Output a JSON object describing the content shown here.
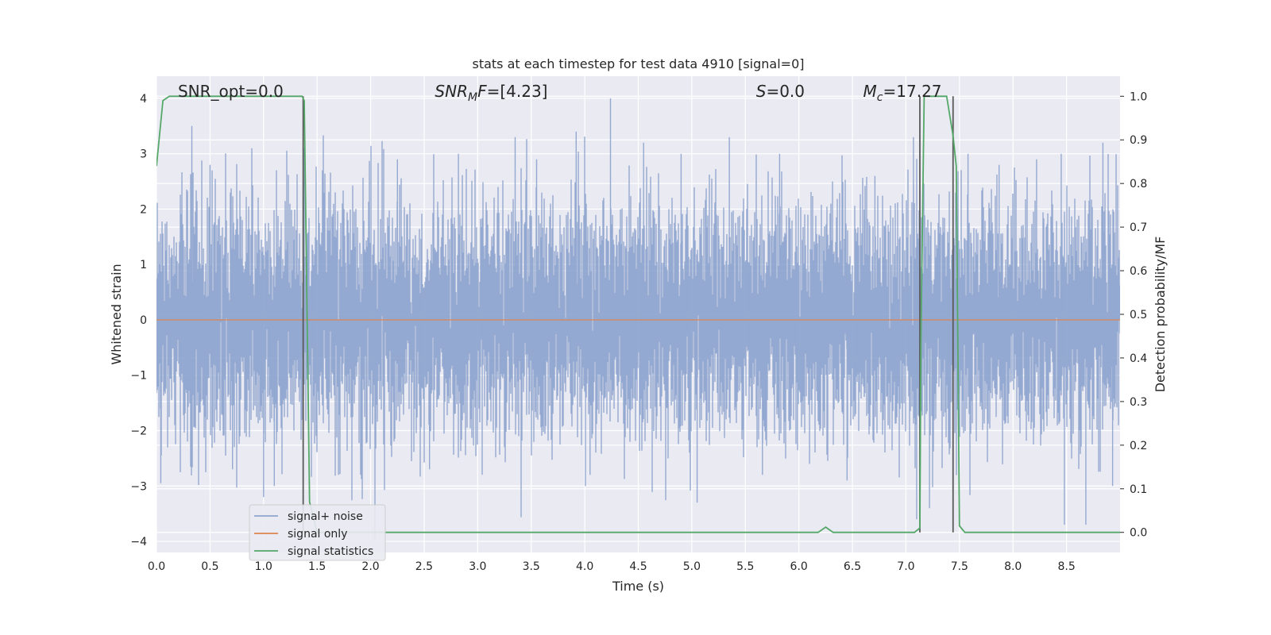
{
  "chart_data": {
    "type": "line",
    "title": "stats at each timestep for test data 4910 [signal=0]",
    "xlabel": "Time (s)",
    "ylabel": "Whitened strain",
    "y2label": "Detection probability/MF",
    "xlim": [
      0,
      9
    ],
    "ylim": [
      -4.2,
      4.4
    ],
    "y2lim": [
      -0.046,
      1.046
    ],
    "x_ticks": [
      0.0,
      0.5,
      1.0,
      1.5,
      2.0,
      2.5,
      3.0,
      3.5,
      4.0,
      4.5,
      5.0,
      5.5,
      6.0,
      6.5,
      7.0,
      7.5,
      8.0,
      8.5
    ],
    "x_tick_labels": [
      "0.0",
      "0.5",
      "1.0",
      "1.5",
      "2.0",
      "2.5",
      "3.0",
      "3.5",
      "4.0",
      "4.5",
      "5.0",
      "5.5",
      "6.0",
      "6.5",
      "7.0",
      "7.5",
      "8.0",
      "8.5"
    ],
    "y_ticks": [
      -4,
      -3,
      -2,
      -1,
      0,
      1,
      2,
      3,
      4
    ],
    "y_tick_labels": [
      "−4",
      "−3",
      "−2",
      "−1",
      "0",
      "1",
      "2",
      "3",
      "4"
    ],
    "y2_ticks": [
      0.0,
      0.1,
      0.2,
      0.3,
      0.4,
      0.5,
      0.6,
      0.7,
      0.8,
      0.9,
      1.0
    ],
    "y2_tick_labels": [
      "0.0",
      "0.1",
      "0.2",
      "0.3",
      "0.4",
      "0.5",
      "0.6",
      "0.7",
      "0.8",
      "0.9",
      "1.0"
    ],
    "grid": true,
    "legend_position": "lower-left",
    "annotations": [
      {
        "text": "SNR_opt=0.0",
        "x": 0.2
      },
      {
        "text": "SNR",
        "sub": "M",
        "after": "F=[4.23]",
        "x": 2.6
      },
      {
        "text": "S",
        "sub": "",
        "after": "=0.0",
        "x": 5.6
      },
      {
        "text": "M",
        "sub": "c",
        "after": "=17.27",
        "x": 6.6
      }
    ],
    "vertical_lines": [
      1.37,
      7.13,
      7.44
    ],
    "series": [
      {
        "name": "signal+ noise",
        "color": "#8fa5cf",
        "axis": "left",
        "style": "noise",
        "sample_rate": 2048,
        "sigma": 1.0,
        "spikes": [
          [
            0.04,
            -2.95
          ],
          [
            0.33,
            3.5
          ],
          [
            0.5,
            2.8
          ],
          [
            0.71,
            -2.7
          ],
          [
            0.89,
            3.1
          ],
          [
            1.0,
            -3.2
          ],
          [
            1.1,
            -3.0
          ],
          [
            1.38,
            3.1
          ],
          [
            1.55,
            2.7
          ],
          [
            1.7,
            -2.8
          ],
          [
            2.25,
            2.9
          ],
          [
            2.55,
            -2.7
          ],
          [
            2.82,
            3.0
          ],
          [
            3.35,
            3.3
          ],
          [
            3.55,
            2.9
          ],
          [
            3.92,
            3.4
          ],
          [
            4.05,
            -2.8
          ],
          [
            4.24,
            4.0
          ],
          [
            4.55,
            3.2
          ],
          [
            4.9,
            3.0
          ],
          [
            5.05,
            -3.3
          ],
          [
            5.35,
            3.3
          ],
          [
            5.66,
            -2.8
          ],
          [
            5.82,
            3.0
          ],
          [
            6.1,
            -2.6
          ],
          [
            6.45,
            -2.9
          ],
          [
            6.71,
            2.6
          ],
          [
            7.07,
            3.3
          ],
          [
            7.1,
            -3.6
          ],
          [
            7.22,
            -3.4
          ],
          [
            7.58,
            3.0
          ],
          [
            7.87,
            2.8
          ],
          [
            8.22,
            2.9
          ],
          [
            8.45,
            3.0
          ],
          [
            8.48,
            -3.7
          ],
          [
            8.68,
            -3.7
          ],
          [
            8.84,
            3.2
          ],
          [
            8.93,
            -3.0
          ]
        ]
      },
      {
        "name": "signal only",
        "color": "#dd8452",
        "axis": "left",
        "style": "flat",
        "x": [
          0,
          9
        ],
        "y": [
          0,
          0
        ]
      },
      {
        "name": "signal statistics",
        "color": "#55a868",
        "axis": "right",
        "style": "line",
        "x": [
          0.0,
          0.06,
          0.12,
          0.2,
          0.5,
          1.0,
          1.3,
          1.36,
          1.38,
          1.43,
          1.5,
          1.55,
          1.6,
          2.0,
          3.0,
          4.0,
          5.0,
          6.0,
          6.18,
          6.25,
          6.32,
          6.4,
          7.0,
          7.08,
          7.13,
          7.14,
          7.17,
          7.2,
          7.3,
          7.38,
          7.44,
          7.47,
          7.5,
          7.55,
          7.6,
          8.0,
          8.5,
          9.0
        ],
        "y": [
          0.84,
          0.99,
          1.0,
          1.0,
          1.0,
          1.0,
          1.0,
          1.0,
          0.99,
          0.07,
          0.0,
          0.0,
          0.0,
          0.0,
          0.0,
          0.0,
          0.0,
          0.0,
          0.0,
          0.012,
          0.0,
          0.0,
          0.0,
          0.0,
          0.01,
          0.44,
          1.0,
          1.0,
          1.0,
          1.0,
          0.91,
          0.84,
          0.015,
          0.0,
          0.0,
          0.0,
          0.0,
          0.0
        ]
      }
    ]
  }
}
